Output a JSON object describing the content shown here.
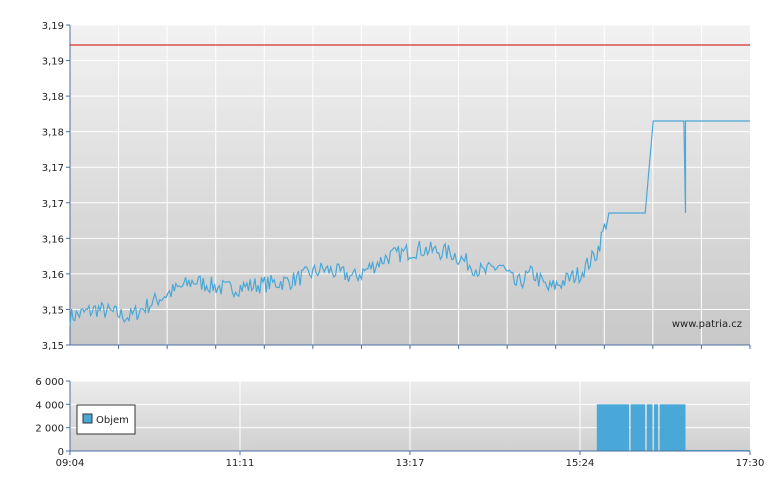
{
  "chart_data": [
    {
      "type": "line",
      "ylim": [
        3.15,
        3.19
      ],
      "y_ticks": [
        "3,15",
        "3,15",
        "3,16",
        "3,16",
        "3,17",
        "3,17",
        "3,18",
        "3,18",
        "3,19",
        "3,19"
      ],
      "reference_line": {
        "value": 3.1875,
        "color": "#cc0000"
      },
      "line_color": "#4aa8d8",
      "watermark": "www.patria.cz",
      "x_hours": [
        9.067,
        9.4,
        9.8,
        10.2,
        10.6,
        11.0,
        11.4,
        11.8,
        12.2,
        12.6,
        13.0,
        13.4,
        13.8,
        14.2,
        14.4,
        14.6,
        14.8,
        15.0,
        15.2,
        15.4,
        15.6,
        15.75,
        16.2,
        16.3,
        16.7,
        17.5
      ],
      "y_values": [
        3.1535,
        3.1545,
        3.1535,
        3.156,
        3.158,
        3.157,
        3.1575,
        3.158,
        3.1595,
        3.1585,
        3.161,
        3.162,
        3.1615,
        3.159,
        3.16,
        3.1575,
        3.159,
        3.157,
        3.158,
        3.159,
        3.1615,
        3.1665,
        3.1665,
        3.178,
        3.178,
        3.178
      ]
    },
    {
      "type": "bar",
      "legend": "Objem",
      "bar_color": "#4aa8d8",
      "ylim": [
        0,
        6000
      ],
      "y_ticks": [
        "0",
        "2 000",
        "4 000",
        "6 000"
      ],
      "x_ticks": [
        "09:04",
        "11:11",
        "13:17",
        "15:24",
        "17:30"
      ],
      "bars": [
        {
          "start": 15.6,
          "end": 16.0,
          "value": 4000
        },
        {
          "start": 16.02,
          "end": 16.2,
          "value": 4000
        },
        {
          "start": 16.22,
          "end": 16.29,
          "value": 4000
        },
        {
          "start": 16.31,
          "end": 16.36,
          "value": 4000
        },
        {
          "start": 16.38,
          "end": 16.7,
          "value": 4000
        },
        {
          "start": 16.7,
          "end": 17.5,
          "value": 80
        }
      ]
    }
  ]
}
